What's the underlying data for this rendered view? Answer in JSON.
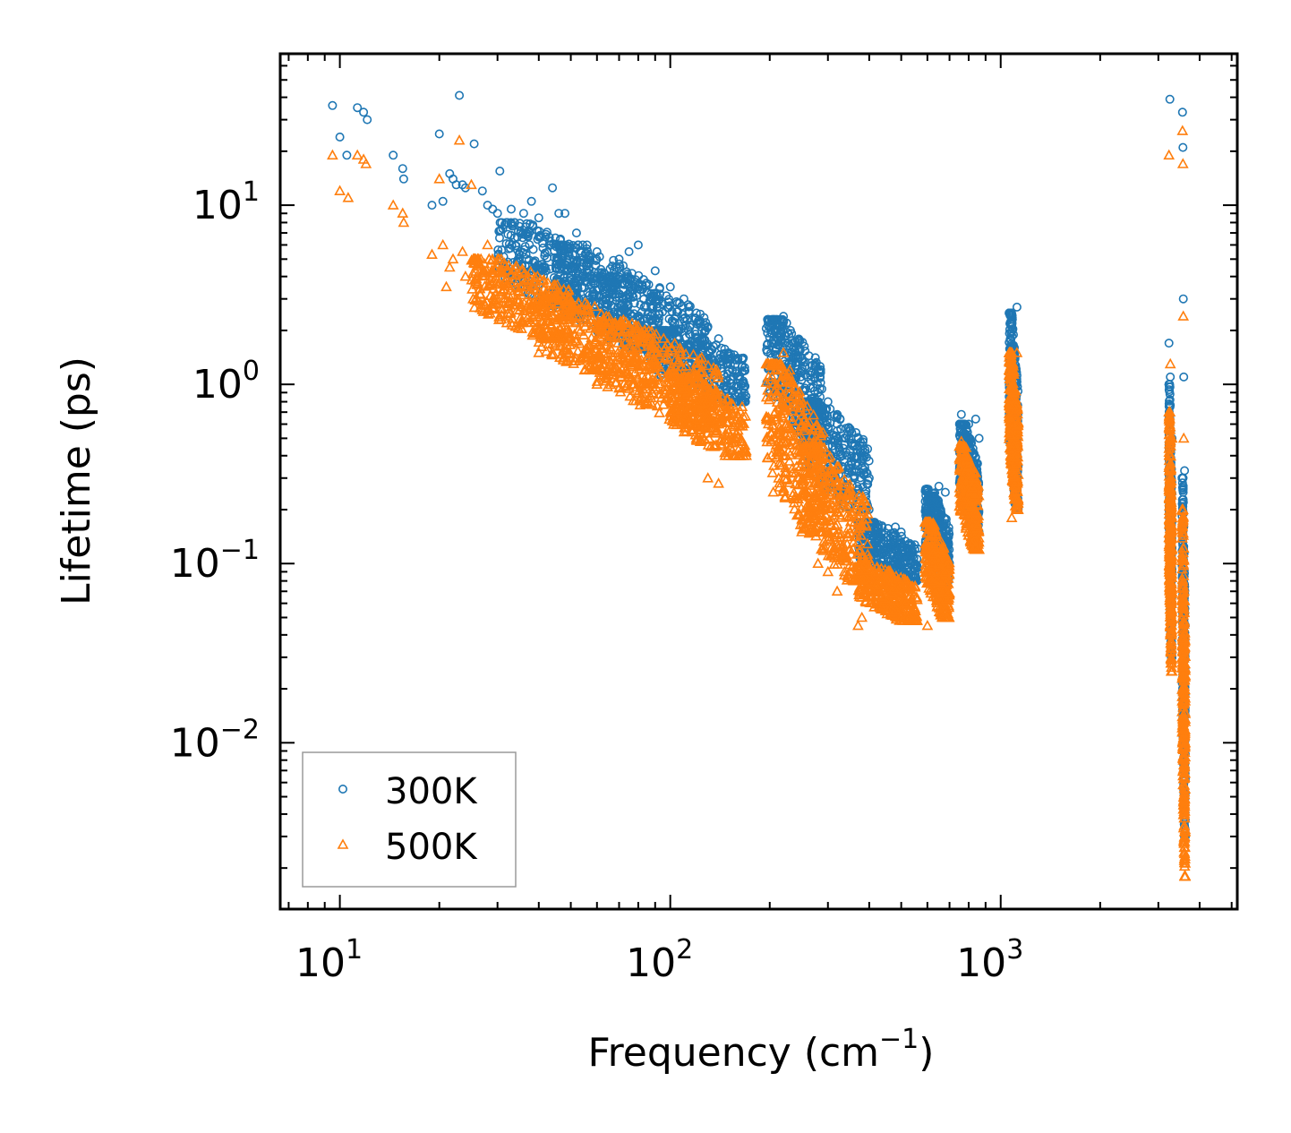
{
  "chart_data": {
    "type": "scatter",
    "title": "",
    "xlabel": "Frequency (cm",
    "xlabel_sup": "−1",
    "xlabel_end": ")",
    "ylabel": "Lifetime (ps)",
    "xscale": "log",
    "yscale": "log",
    "xlim": [
      6.6,
      5200
    ],
    "ylim": [
      0.00118,
      70
    ],
    "x_ticks": [
      {
        "value": 10,
        "base": "10",
        "exp": "1"
      },
      {
        "value": 100,
        "base": "10",
        "exp": "2"
      },
      {
        "value": 1000,
        "base": "10",
        "exp": "3"
      }
    ],
    "y_ticks": [
      {
        "value": 10,
        "base": "10",
        "exp": "1"
      },
      {
        "value": 1,
        "base": "10",
        "exp": "0"
      },
      {
        "value": 0.1,
        "base": "10",
        "exp": "−1"
      },
      {
        "value": 0.01,
        "base": "10",
        "exp": "−2"
      }
    ],
    "legend_position": "bottom-left",
    "series": [
      {
        "name": "300K",
        "marker": "circle",
        "color": "#1f77b4",
        "points": [
          [
            9.5,
            36
          ],
          [
            10,
            24
          ],
          [
            10.5,
            19
          ],
          [
            11.3,
            35
          ],
          [
            11.8,
            33
          ],
          [
            12.1,
            30
          ],
          [
            14.5,
            19
          ],
          [
            15.5,
            16
          ],
          [
            15.6,
            14
          ],
          [
            19,
            10
          ],
          [
            20,
            25
          ],
          [
            20.5,
            10.5
          ],
          [
            21.5,
            15
          ],
          [
            22,
            14
          ],
          [
            22.5,
            13
          ],
          [
            23,
            41
          ],
          [
            23.5,
            13
          ],
          [
            24,
            12.5
          ],
          [
            25.5,
            22
          ],
          [
            27,
            12
          ],
          [
            28,
            10
          ],
          [
            29,
            9.5
          ],
          [
            30,
            9
          ],
          [
            30.5,
            15.5
          ],
          [
            33,
            9.5
          ],
          [
            36,
            9
          ],
          [
            38,
            10.5
          ],
          [
            40,
            8.5
          ],
          [
            44,
            12.5
          ],
          [
            46,
            9
          ],
          [
            48,
            9
          ],
          [
            52,
            7
          ],
          [
            56,
            6
          ],
          [
            60,
            5.5
          ],
          [
            70,
            5
          ],
          [
            75,
            5.5
          ],
          [
            80,
            6
          ],
          [
            90,
            4.3
          ],
          [
            100,
            3.5
          ],
          [
            110,
            3
          ],
          [
            120,
            2.5
          ],
          [
            130,
            2.1
          ],
          [
            140,
            1.8
          ],
          [
            150,
            1.5
          ],
          [
            160,
            1.4
          ],
          [
            165,
            1.4
          ],
          [
            205,
            1.7
          ],
          [
            215,
            2.3
          ],
          [
            220,
            2.4
          ],
          [
            225,
            2.2
          ],
          [
            240,
            1.5
          ],
          [
            260,
            1.1
          ],
          [
            280,
            0.9
          ],
          [
            300,
            0.8
          ],
          [
            320,
            0.6
          ],
          [
            340,
            0.5
          ],
          [
            350,
            0.55
          ],
          [
            360,
            0.45
          ],
          [
            380,
            0.4
          ],
          [
            400,
            0.3
          ],
          [
            420,
            0.12
          ],
          [
            450,
            0.14
          ],
          [
            480,
            0.16
          ],
          [
            500,
            0.15
          ],
          [
            550,
            0.12
          ],
          [
            600,
            0.1
          ],
          [
            620,
            0.2
          ],
          [
            650,
            0.27
          ],
          [
            680,
            0.25
          ],
          [
            760,
            0.68
          ],
          [
            800,
            0.6
          ],
          [
            840,
            0.64
          ],
          [
            860,
            0.5
          ],
          [
            1080,
            0.7
          ],
          [
            1100,
            1.6
          ],
          [
            1120,
            2.7
          ],
          [
            3230,
            1.7
          ],
          [
            3250,
            39
          ],
          [
            3260,
            1.1
          ],
          [
            3300,
            0.5
          ],
          [
            3550,
            33
          ],
          [
            3560,
            21
          ],
          [
            3570,
            3
          ],
          [
            3580,
            1.1
          ],
          [
            3600,
            0.33
          ]
        ],
        "clusters": [
          {
            "x": [
              30,
              60
            ],
            "y": [
              2.5,
              8
            ]
          },
          {
            "x": [
              45,
              95
            ],
            "y": [
              1.6,
              6
            ]
          },
          {
            "x": [
              60,
              130
            ],
            "y": [
              1.2,
              4
            ]
          },
          {
            "x": [
              90,
              170
            ],
            "y": [
              0.8,
              2
            ]
          },
          {
            "x": [
              195,
              290
            ],
            "y": [
              0.5,
              2.3
            ]
          },
          {
            "x": [
              250,
              400
            ],
            "y": [
              0.2,
              0.8
            ]
          },
          {
            "x": [
              370,
              560
            ],
            "y": [
              0.08,
              0.17
            ]
          },
          {
            "x": [
              590,
              700
            ],
            "y": [
              0.08,
              0.26
            ]
          },
          {
            "x": [
              750,
              860
            ],
            "y": [
              0.15,
              0.6
            ]
          },
          {
            "x": [
              1060,
              1130
            ],
            "y": [
              0.2,
              2.5
            ]
          },
          {
            "x": [
              3230,
              3300
            ],
            "y": [
              0.03,
              1.0
            ]
          },
          {
            "x": [
              3540,
              3620
            ],
            "y": [
              0.003,
              0.3
            ]
          }
        ]
      },
      {
        "name": "500K",
        "marker": "triangle",
        "color": "#ff7f0e",
        "points": [
          [
            9.5,
            19
          ],
          [
            10,
            12
          ],
          [
            10.6,
            11
          ],
          [
            11.3,
            19
          ],
          [
            11.8,
            18
          ],
          [
            12,
            17
          ],
          [
            14.5,
            10
          ],
          [
            15.5,
            9
          ],
          [
            15.6,
            8
          ],
          [
            19,
            5.3
          ],
          [
            20,
            14
          ],
          [
            20.5,
            6
          ],
          [
            21,
            3.5
          ],
          [
            21.5,
            4.5
          ],
          [
            22,
            5
          ],
          [
            23,
            23
          ],
          [
            23.5,
            5.5
          ],
          [
            24,
            4
          ],
          [
            25,
            13
          ],
          [
            26,
            3.6
          ],
          [
            28,
            6
          ],
          [
            30,
            4.5
          ],
          [
            32,
            2.2
          ],
          [
            34,
            2.1
          ],
          [
            38,
            2.8
          ],
          [
            40,
            1.5
          ],
          [
            45,
            1.7
          ],
          [
            48,
            1.6
          ],
          [
            55,
            1.2
          ],
          [
            60,
            1.0
          ],
          [
            70,
            0.95
          ],
          [
            80,
            0.9
          ],
          [
            100,
            0.7
          ],
          [
            110,
            0.6
          ],
          [
            120,
            0.5
          ],
          [
            130,
            0.3
          ],
          [
            140,
            0.28
          ],
          [
            150,
            0.4
          ],
          [
            160,
            0.5
          ],
          [
            165,
            0.75
          ],
          [
            205,
            0.25
          ],
          [
            215,
            1.2
          ],
          [
            220,
            1.5
          ],
          [
            230,
            1.2
          ],
          [
            250,
            0.15
          ],
          [
            280,
            0.1
          ],
          [
            300,
            0.09
          ],
          [
            320,
            0.07
          ],
          [
            350,
            0.12
          ],
          [
            370,
            0.045
          ],
          [
            380,
            0.05
          ],
          [
            420,
            0.06
          ],
          [
            480,
            0.055
          ],
          [
            520,
            0.05
          ],
          [
            600,
            0.045
          ],
          [
            620,
            0.08
          ],
          [
            650,
            0.1
          ],
          [
            680,
            0.09
          ],
          [
            760,
            0.48
          ],
          [
            800,
            0.3
          ],
          [
            840,
            0.32
          ],
          [
            1080,
            0.18
          ],
          [
            1100,
            0.7
          ],
          [
            1120,
            1.5
          ],
          [
            3230,
            19
          ],
          [
            3260,
            1.3
          ],
          [
            3300,
            0.5
          ],
          [
            3550,
            26
          ],
          [
            3560,
            17
          ],
          [
            3570,
            2.4
          ],
          [
            3580,
            0.5
          ]
        ],
        "clusters": [
          {
            "x": [
              25,
              50
            ],
            "y": [
              1.8,
              5
            ]
          },
          {
            "x": [
              40,
              90
            ],
            "y": [
              1.0,
              3
            ]
          },
          {
            "x": [
              60,
              140
            ],
            "y": [
              0.6,
              2.2
            ]
          },
          {
            "x": [
              100,
              170
            ],
            "y": [
              0.4,
              1.1
            ]
          },
          {
            "x": [
              195,
              290
            ],
            "y": [
              0.15,
              1.3
            ]
          },
          {
            "x": [
              250,
              400
            ],
            "y": [
              0.08,
              0.45
            ]
          },
          {
            "x": [
              370,
              560
            ],
            "y": [
              0.048,
              0.1
            ]
          },
          {
            "x": [
              590,
              700
            ],
            "y": [
              0.05,
              0.17
            ]
          },
          {
            "x": [
              750,
              860
            ],
            "y": [
              0.12,
              0.45
            ]
          },
          {
            "x": [
              1060,
              1130
            ],
            "y": [
              0.2,
              1.5
            ]
          },
          {
            "x": [
              3230,
              3300
            ],
            "y": [
              0.025,
              0.7
            ]
          },
          {
            "x": [
              3540,
              3620
            ],
            "y": [
              0.0018,
              0.2
            ]
          }
        ]
      }
    ]
  }
}
